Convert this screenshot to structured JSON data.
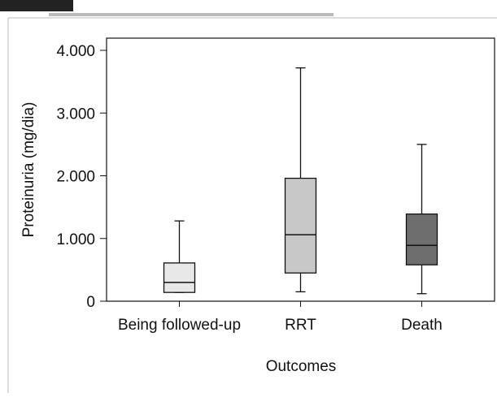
{
  "chart_data": {
    "type": "box",
    "x_label": "Outcomes",
    "y_label": "Proteinuria (mg/dia)",
    "categories": [
      "Being followed-up",
      "RRT",
      "Death"
    ],
    "boxes": [
      {
        "min": 140,
        "q1": 140,
        "median": 300,
        "q3": 610,
        "max": 1280,
        "color": "#e8e8e8"
      },
      {
        "min": 150,
        "q1": 450,
        "median": 1060,
        "q3": 1960,
        "max": 3720,
        "color": "#c8c8c8"
      },
      {
        "min": 120,
        "q1": 580,
        "median": 890,
        "q3": 1390,
        "max": 2500,
        "color": "#6e6e6e"
      }
    ],
    "ylim": [
      0,
      4000
    ],
    "yticks": [
      0,
      {
        "value": 1000,
        "label": "1.000"
      },
      {
        "value": 2000,
        "label": "2.000"
      },
      {
        "value": 3000,
        "label": "3.000"
      },
      {
        "value": 4000,
        "label": "4.000"
      }
    ],
    "grid": false
  }
}
